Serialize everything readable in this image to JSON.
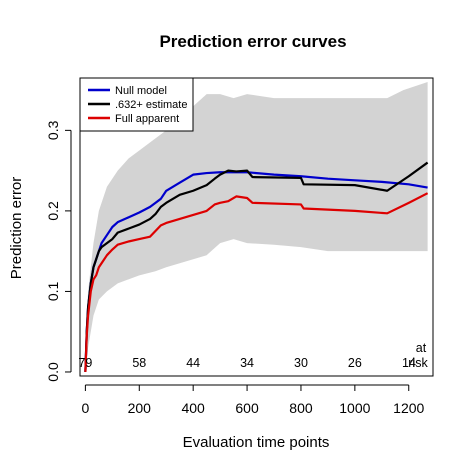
{
  "chart_data": {
    "type": "line",
    "title": "Prediction error curves",
    "xlabel": "Evaluation time points",
    "ylabel": "Prediction error",
    "xlim": [
      -20,
      1290
    ],
    "ylim": [
      -0.005,
      0.365
    ],
    "x_ticks": [
      0,
      200,
      400,
      600,
      800,
      1000,
      1200
    ],
    "x_tick_labels": [
      "0",
      "200",
      "400",
      "600",
      "800",
      "1000",
      "1200"
    ],
    "y_ticks": [
      0.0,
      0.1,
      0.2,
      0.3
    ],
    "y_tick_labels": [
      "0.0",
      "0.1",
      "0.2",
      "0.3"
    ],
    "legend_position": "top-left",
    "series": [
      {
        "name": "Null model",
        "color": "#0000cc",
        "x": [
          0,
          5,
          10,
          20,
          30,
          40,
          50,
          60,
          80,
          100,
          120,
          160,
          200,
          240,
          260,
          280,
          300,
          350,
          400,
          450,
          500,
          550,
          600,
          700,
          800,
          900,
          1000,
          1100,
          1200,
          1270
        ],
        "y": [
          0.0,
          0.05,
          0.08,
          0.11,
          0.13,
          0.14,
          0.15,
          0.16,
          0.17,
          0.18,
          0.186,
          0.192,
          0.198,
          0.205,
          0.21,
          0.215,
          0.225,
          0.235,
          0.245,
          0.247,
          0.248,
          0.248,
          0.248,
          0.245,
          0.243,
          0.24,
          0.238,
          0.236,
          0.233,
          0.229
        ]
      },
      {
        "name": ".632+ estimate",
        "color": "#000000",
        "x": [
          0,
          5,
          10,
          20,
          30,
          40,
          50,
          60,
          80,
          100,
          120,
          160,
          200,
          240,
          260,
          280,
          300,
          350,
          400,
          450,
          480,
          500,
          530,
          560,
          600,
          620,
          800,
          810,
          1000,
          1120,
          1200,
          1270
        ],
        "y": [
          0.0,
          0.05,
          0.08,
          0.11,
          0.13,
          0.14,
          0.15,
          0.155,
          0.16,
          0.165,
          0.173,
          0.178,
          0.183,
          0.19,
          0.196,
          0.205,
          0.21,
          0.22,
          0.225,
          0.232,
          0.24,
          0.245,
          0.25,
          0.249,
          0.25,
          0.242,
          0.241,
          0.233,
          0.232,
          0.225,
          0.243,
          0.26
        ]
      },
      {
        "name": "Full apparent",
        "color": "#dd0000",
        "x": [
          0,
          5,
          10,
          20,
          30,
          40,
          50,
          60,
          80,
          100,
          120,
          160,
          200,
          240,
          260,
          280,
          300,
          350,
          400,
          450,
          480,
          500,
          530,
          560,
          600,
          620,
          800,
          810,
          1000,
          1120,
          1200,
          1270
        ],
        "y": [
          0.0,
          0.045,
          0.07,
          0.1,
          0.115,
          0.12,
          0.13,
          0.135,
          0.145,
          0.152,
          0.158,
          0.162,
          0.165,
          0.168,
          0.175,
          0.182,
          0.185,
          0.19,
          0.195,
          0.2,
          0.208,
          0.21,
          0.212,
          0.218,
          0.216,
          0.21,
          0.208,
          0.203,
          0.2,
          0.197,
          0.21,
          0.222
        ]
      }
    ],
    "band": {
      "x": [
        0,
        10,
        30,
        50,
        80,
        120,
        160,
        200,
        260,
        300,
        350,
        400,
        450,
        500,
        550,
        600,
        700,
        800,
        900,
        1000,
        1120,
        1180,
        1270
      ],
      "upper": [
        0.04,
        0.1,
        0.16,
        0.2,
        0.23,
        0.25,
        0.265,
        0.275,
        0.29,
        0.3,
        0.32,
        0.33,
        0.345,
        0.345,
        0.34,
        0.345,
        0.34,
        0.34,
        0.34,
        0.34,
        0.34,
        0.35,
        0.36
      ],
      "lower": [
        0.0,
        0.03,
        0.07,
        0.09,
        0.1,
        0.11,
        0.115,
        0.12,
        0.125,
        0.13,
        0.135,
        0.14,
        0.145,
        0.16,
        0.165,
        0.16,
        0.158,
        0.155,
        0.15,
        0.15,
        0.15,
        0.15,
        0.15
      ],
      "color": "#d3d3d3"
    },
    "at_risk": {
      "header": [
        "at",
        "risk"
      ],
      "x": [
        0,
        200,
        400,
        600,
        800,
        1000,
        1200
      ],
      "values": [
        "79",
        "58",
        "44",
        "34",
        "30",
        "26",
        "14"
      ]
    }
  }
}
